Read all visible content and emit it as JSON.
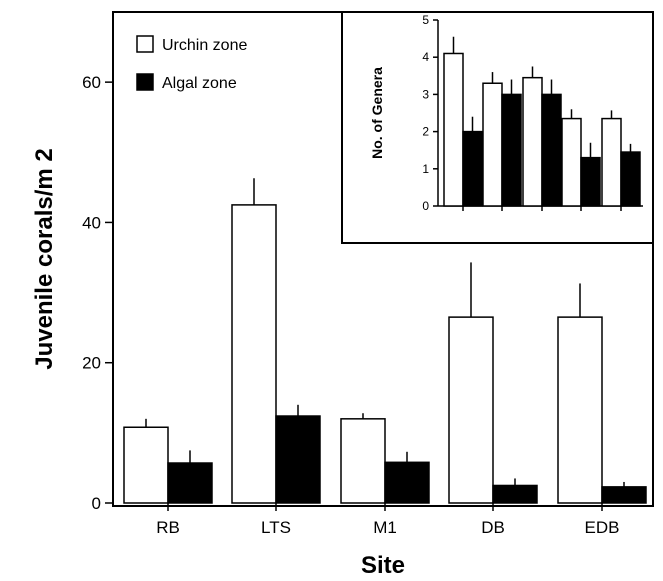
{
  "chart_data": [
    {
      "type": "bar",
      "title": "",
      "xlabel": "Site",
      "ylabel": "Juvenile corals/m 2",
      "categories": [
        "RB",
        "LTS",
        "M1",
        "DB",
        "EDB"
      ],
      "ylim": [
        0,
        70
      ],
      "yticks": [
        "0",
        "20",
        "40",
        "60"
      ],
      "grid": false,
      "legend_position": "top-left",
      "series": [
        {
          "name": "Urchin zone",
          "values": [
            10.8,
            42.5,
            12.0,
            26.5,
            26.5
          ],
          "errors": [
            1.2,
            3.8,
            0.8,
            7.8,
            4.8
          ],
          "fill": "#ffffff"
        },
        {
          "name": "Algal zone",
          "values": [
            5.7,
            12.4,
            5.8,
            2.5,
            2.3
          ],
          "errors": [
            1.8,
            1.6,
            1.5,
            1.0,
            0.7
          ],
          "fill": "#000000"
        }
      ]
    },
    {
      "type": "bar",
      "title": "",
      "xlabel": "",
      "ylabel": "No. of Genera",
      "categories": [
        "RB",
        "LTS",
        "M1",
        "DB",
        "EDB"
      ],
      "show_category_labels": false,
      "ylim": [
        0,
        5
      ],
      "yticks": [
        "0",
        "1",
        "2",
        "3",
        "4",
        "5"
      ],
      "legend_position": "top-right",
      "series": [
        {
          "name": "Urchin zone",
          "values": [
            4.1,
            3.3,
            3.45,
            2.35,
            2.35
          ],
          "errors": [
            0.45,
            0.3,
            0.3,
            0.25,
            0.22
          ],
          "fill": "#ffffff"
        },
        {
          "name": "Algal zone",
          "values": [
            2.0,
            3.0,
            3.0,
            1.3,
            1.45
          ],
          "errors": [
            0.4,
            0.4,
            0.4,
            0.4,
            0.22
          ],
          "fill": "#000000"
        }
      ]
    }
  ]
}
